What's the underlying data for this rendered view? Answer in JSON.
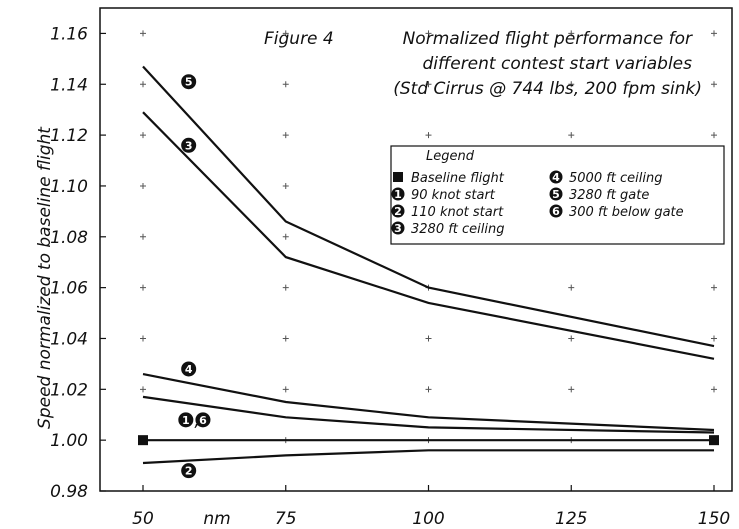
{
  "chart_data": {
    "type": "line",
    "title_prefix": "Figure 4",
    "title_lines": [
      "Normalized flight performance for",
      "different contest start variables",
      "(Std Cirrus @ 744 lbs, 200 fpm sink)"
    ],
    "xlabel": "nm",
    "ylabel": "Speed normalized to baseline flight",
    "xlim": [
      50,
      150
    ],
    "ylim": [
      0.98,
      1.17
    ],
    "x_ticks": [
      "50",
      "75",
      "100",
      "125",
      "150"
    ],
    "y_ticks": [
      "0.98",
      "1.00",
      "1.02",
      "1.04",
      "1.06",
      "1.08",
      "1.10",
      "1.12",
      "1.14",
      "1.16"
    ],
    "x": [
      50,
      75,
      100,
      150
    ],
    "series": [
      {
        "marker": "5",
        "values": [
          1.147,
          1.086,
          1.06,
          1.037
        ]
      },
      {
        "marker": "3",
        "values": [
          1.129,
          1.072,
          1.054,
          1.032
        ]
      },
      {
        "marker": "4",
        "values": [
          1.026,
          1.015,
          1.009,
          1.004
        ]
      },
      {
        "marker": "1,6",
        "values": [
          1.017,
          1.009,
          1.005,
          1.003
        ]
      },
      {
        "name": "Baseline flight",
        "marker": "square",
        "values": [
          1.0,
          1.0,
          1.0,
          1.0
        ]
      },
      {
        "marker": "2",
        "values": [
          0.991,
          0.994,
          0.996,
          0.996
        ]
      }
    ],
    "series_labels": [
      {
        "text": "5",
        "x": 58,
        "y": 1.141
      },
      {
        "text": "3",
        "x": 58,
        "y": 1.116
      },
      {
        "text": "4",
        "x": 58,
        "y": 1.028
      },
      {
        "text": "1",
        "x": 57.5,
        "y": 1.008
      },
      {
        "text": "6",
        "x": 60.5,
        "y": 1.008
      },
      {
        "text": "2",
        "x": 58,
        "y": 0.988
      }
    ],
    "legend": {
      "title": "Legend",
      "position": "right",
      "entries": [
        {
          "marker": "square",
          "label": "Baseline flight"
        },
        {
          "marker": "1",
          "label": "90 knot start"
        },
        {
          "marker": "2",
          "label": "110 knot start"
        },
        {
          "marker": "3",
          "label": "3280 ft ceiling"
        },
        {
          "marker": "4",
          "label": "5000 ft ceiling"
        },
        {
          "marker": "5",
          "label": "3280 ft gate"
        },
        {
          "marker": "6",
          "label": "300 ft below gate"
        }
      ]
    },
    "grid": "plus-markers"
  }
}
